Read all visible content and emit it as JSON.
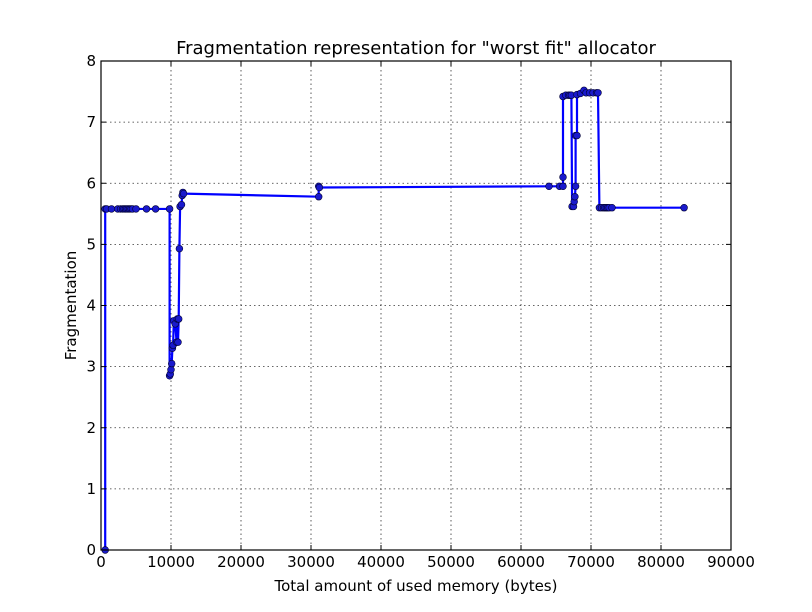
{
  "chart_data": {
    "type": "line",
    "title": "Fragmentation representation for \"worst fit\" allocator",
    "xlabel": "Total amount of used memory (bytes)",
    "ylabel": "Fragmentation",
    "xlim": [
      0,
      90000
    ],
    "ylim": [
      0,
      8
    ],
    "xticks": [
      0,
      10000,
      20000,
      30000,
      40000,
      50000,
      60000,
      70000,
      80000,
      90000
    ],
    "yticks": [
      0,
      1,
      2,
      3,
      4,
      5,
      6,
      7,
      8
    ],
    "grid": true,
    "color": "#0000ff",
    "marker_color": "#1a1acc",
    "series": [
      {
        "points": [
          [
            600,
            0
          ],
          [
            600,
            5.58
          ],
          [
            800,
            5.58
          ],
          [
            1500,
            5.58
          ],
          [
            2400,
            5.58
          ],
          [
            2800,
            5.58
          ],
          [
            3100,
            5.58
          ],
          [
            3300,
            5.58
          ],
          [
            3500,
            5.58
          ],
          [
            3700,
            5.58
          ],
          [
            3900,
            5.58
          ],
          [
            4100,
            5.58
          ],
          [
            4300,
            5.58
          ],
          [
            4500,
            5.58
          ],
          [
            5000,
            5.58
          ],
          [
            6500,
            5.58
          ],
          [
            7800,
            5.58
          ],
          [
            9800,
            5.58
          ],
          [
            9800,
            2.85
          ],
          [
            9900,
            2.88
          ],
          [
            10000,
            2.95
          ],
          [
            10100,
            3.05
          ],
          [
            10200,
            3.3
          ],
          [
            10300,
            3.35
          ],
          [
            10400,
            3.75
          ],
          [
            10600,
            3.7
          ],
          [
            10800,
            3.4
          ],
          [
            10900,
            3.78
          ],
          [
            11000,
            3.4
          ],
          [
            11100,
            3.78
          ],
          [
            11200,
            4.93
          ],
          [
            11300,
            5.62
          ],
          [
            11500,
            5.65
          ],
          [
            11600,
            5.8
          ],
          [
            11700,
            5.85
          ],
          [
            11800,
            5.83
          ],
          [
            31100,
            5.78
          ],
          [
            31100,
            5.95
          ],
          [
            31200,
            5.93
          ],
          [
            64000,
            5.95
          ],
          [
            65500,
            5.95
          ],
          [
            66000,
            5.95
          ],
          [
            66000,
            6.1
          ],
          [
            66000,
            7.42
          ],
          [
            66400,
            7.44
          ],
          [
            66800,
            7.44
          ],
          [
            67000,
            7.44
          ],
          [
            67200,
            7.44
          ],
          [
            67300,
            5.62
          ],
          [
            67500,
            5.62
          ],
          [
            67600,
            5.7
          ],
          [
            67700,
            5.78
          ],
          [
            67800,
            5.95
          ],
          [
            67800,
            6.78
          ],
          [
            68000,
            6.78
          ],
          [
            68000,
            7.45
          ],
          [
            68500,
            7.47
          ],
          [
            69000,
            7.52
          ],
          [
            69300,
            7.48
          ],
          [
            69800,
            7.48
          ],
          [
            70300,
            7.48
          ],
          [
            70800,
            7.48
          ],
          [
            71000,
            7.48
          ],
          [
            71200,
            5.6
          ],
          [
            71500,
            5.6
          ],
          [
            71800,
            5.6
          ],
          [
            72000,
            5.6
          ],
          [
            72200,
            5.6
          ],
          [
            72400,
            5.6
          ],
          [
            72600,
            5.6
          ],
          [
            73000,
            5.6
          ],
          [
            83300,
            5.6
          ]
        ]
      }
    ]
  }
}
